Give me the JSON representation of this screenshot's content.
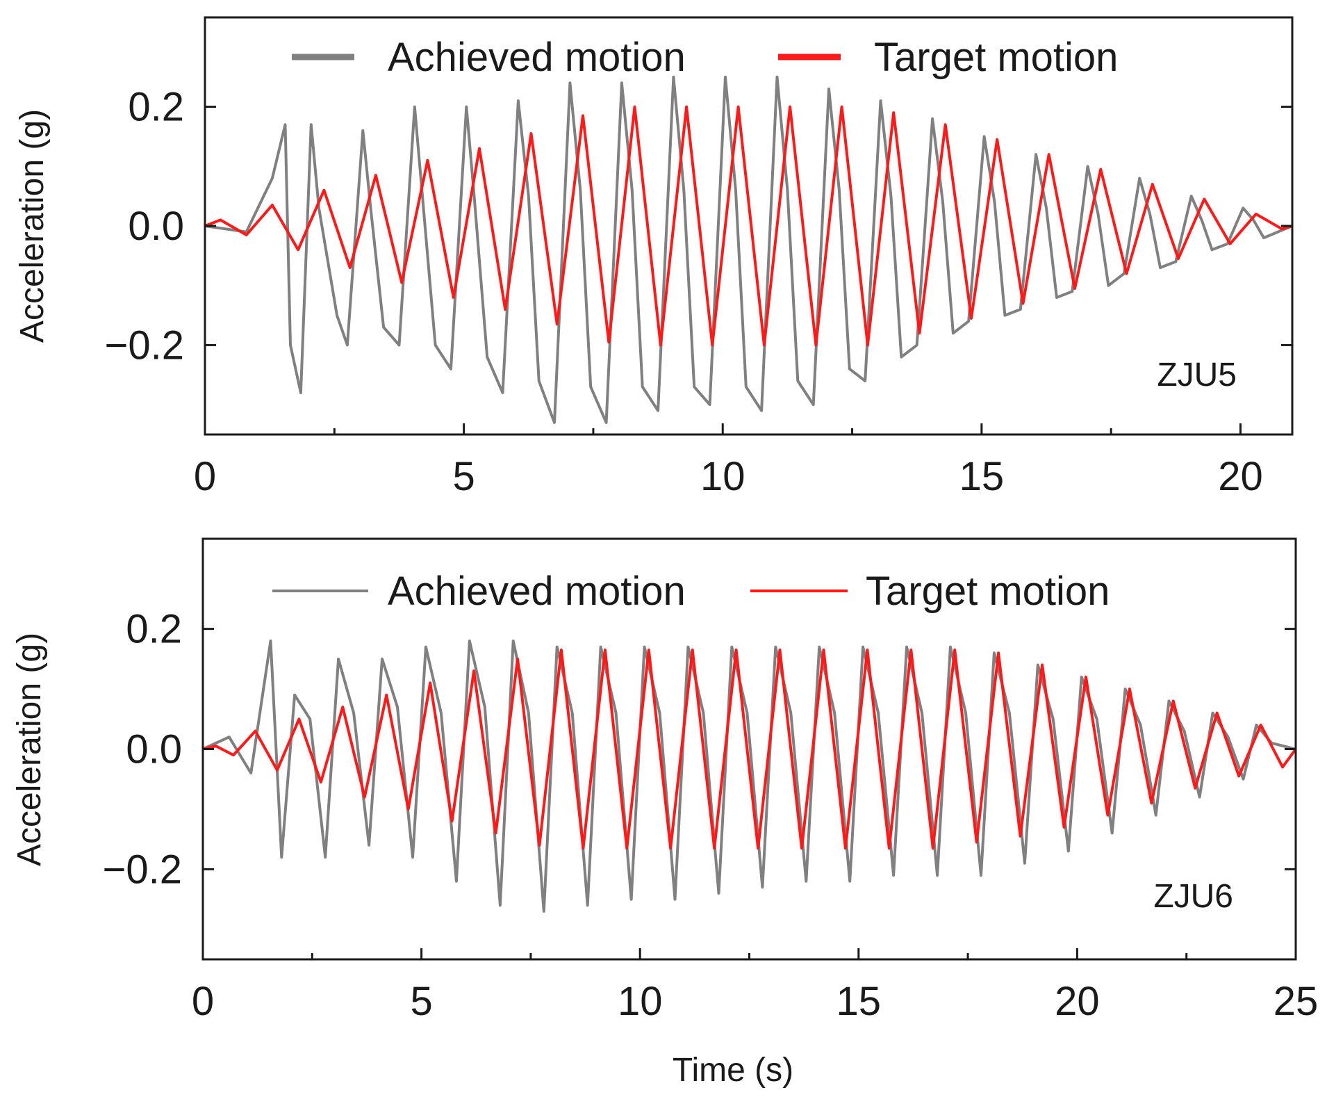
{
  "chart_data": [
    {
      "type": "line",
      "annotation": "ZJU5",
      "ylabel": "Acceleration (g)",
      "xlabel": "",
      "xlim": [
        0,
        21
      ],
      "ylim": [
        -0.35,
        0.35
      ],
      "xticks": [
        0,
        5,
        10,
        15,
        20
      ],
      "xticklabels": [
        "0",
        "5",
        "10",
        "15",
        "20"
      ],
      "yticks": [
        -0.2,
        0.0,
        0.2
      ],
      "yticklabels": [
        "−0.2",
        "0.0",
        "0.2"
      ],
      "legend_position": "top",
      "legend_line_style": "thick",
      "series": [
        {
          "name": "Achieved motion",
          "color": "#808080",
          "description": "noisy measured table acceleration; sampled peak envelope",
          "x": [
            0.0,
            0.8,
            1.3,
            1.55,
            1.65,
            1.85,
            2.05,
            2.2,
            2.55,
            2.75,
            3.05,
            3.2,
            3.45,
            3.75,
            4.05,
            4.2,
            4.45,
            4.75,
            5.05,
            5.2,
            5.45,
            5.75,
            6.05,
            6.25,
            6.45,
            6.75,
            7.05,
            7.25,
            7.45,
            7.75,
            8.05,
            8.25,
            8.45,
            8.75,
            9.05,
            9.25,
            9.45,
            9.75,
            10.05,
            10.25,
            10.45,
            10.75,
            11.05,
            11.25,
            11.45,
            11.75,
            12.05,
            12.25,
            12.45,
            12.75,
            13.05,
            13.25,
            13.45,
            13.75,
            14.05,
            14.25,
            14.45,
            14.75,
            15.05,
            15.25,
            15.45,
            15.75,
            16.05,
            16.25,
            16.45,
            16.75,
            17.05,
            17.25,
            17.45,
            17.75,
            18.05,
            18.25,
            18.45,
            18.75,
            19.05,
            19.25,
            19.45,
            19.75,
            20.05,
            20.25,
            20.45,
            21.0
          ],
          "y": [
            0.0,
            -0.01,
            0.08,
            0.17,
            -0.2,
            -0.28,
            0.17,
            0.03,
            -0.15,
            -0.2,
            0.16,
            0.03,
            -0.17,
            -0.2,
            0.2,
            0.05,
            -0.2,
            -0.24,
            0.2,
            0.05,
            -0.22,
            -0.28,
            0.21,
            0.05,
            -0.26,
            -0.33,
            0.24,
            0.06,
            -0.27,
            -0.33,
            0.24,
            0.06,
            -0.27,
            -0.31,
            0.25,
            0.06,
            -0.27,
            -0.3,
            0.25,
            0.06,
            -0.27,
            -0.31,
            0.25,
            0.06,
            -0.26,
            -0.3,
            0.23,
            0.06,
            -0.24,
            -0.26,
            0.21,
            0.05,
            -0.22,
            -0.2,
            0.18,
            0.04,
            -0.18,
            -0.16,
            0.15,
            0.04,
            -0.15,
            -0.14,
            0.12,
            0.03,
            -0.12,
            -0.11,
            0.1,
            0.02,
            -0.1,
            -0.08,
            0.08,
            0.02,
            -0.07,
            -0.06,
            0.05,
            0.01,
            -0.04,
            -0.03,
            0.03,
            0.01,
            -0.02,
            0.0
          ]
        },
        {
          "name": "Target motion",
          "color": "#ff1a1a",
          "x": [
            0.0,
            0.3,
            0.8,
            1.3,
            1.8,
            2.3,
            2.8,
            3.3,
            3.8,
            4.3,
            4.8,
            5.3,
            5.8,
            6.3,
            6.8,
            7.3,
            7.8,
            8.3,
            8.8,
            9.3,
            9.8,
            10.3,
            10.8,
            11.3,
            11.8,
            12.3,
            12.8,
            13.3,
            13.8,
            14.3,
            14.8,
            15.3,
            15.8,
            16.3,
            16.8,
            17.3,
            17.8,
            18.3,
            18.8,
            19.3,
            19.8,
            20.3,
            20.8,
            21.0
          ],
          "y": [
            0.0,
            0.01,
            -0.015,
            0.035,
            -0.04,
            0.06,
            -0.07,
            0.085,
            -0.095,
            0.11,
            -0.12,
            0.13,
            -0.14,
            0.155,
            -0.165,
            0.185,
            -0.195,
            0.2,
            -0.2,
            0.2,
            -0.2,
            0.2,
            -0.2,
            0.2,
            -0.2,
            0.2,
            -0.2,
            0.19,
            -0.18,
            0.17,
            -0.155,
            0.145,
            -0.13,
            0.12,
            -0.105,
            0.095,
            -0.08,
            0.07,
            -0.055,
            0.045,
            -0.03,
            0.02,
            -0.005,
            0.0
          ]
        }
      ]
    },
    {
      "type": "line",
      "annotation": "ZJU6",
      "ylabel": "Acceleration (g)",
      "xlabel": "Time (s)",
      "xlim": [
        0,
        25
      ],
      "ylim": [
        -0.35,
        0.35
      ],
      "xticks": [
        0,
        5,
        10,
        15,
        20,
        25
      ],
      "xticklabels": [
        "0",
        "5",
        "10",
        "15",
        "20",
        "25"
      ],
      "yticks": [
        -0.2,
        0.0,
        0.2
      ],
      "yticklabels": [
        "−0.2",
        "0.0",
        "0.2"
      ],
      "legend_position": "top",
      "legend_line_style": "thin",
      "series": [
        {
          "name": "Achieved motion",
          "color": "#808080",
          "description": "noisy measured table acceleration; sampled peak envelope",
          "x": [
            0.0,
            0.6,
            1.1,
            1.55,
            1.8,
            2.1,
            2.45,
            2.8,
            3.1,
            3.45,
            3.8,
            4.1,
            4.45,
            4.8,
            5.1,
            5.45,
            5.8,
            6.1,
            6.45,
            6.8,
            7.1,
            7.45,
            7.8,
            8.1,
            8.45,
            8.8,
            9.1,
            9.45,
            9.8,
            10.1,
            10.45,
            10.8,
            11.1,
            11.45,
            11.8,
            12.1,
            12.45,
            12.8,
            13.1,
            13.45,
            13.8,
            14.1,
            14.45,
            14.8,
            15.1,
            15.45,
            15.8,
            16.1,
            16.45,
            16.8,
            17.1,
            17.45,
            17.8,
            18.1,
            18.45,
            18.8,
            19.1,
            19.45,
            19.8,
            20.1,
            20.45,
            20.8,
            21.1,
            21.45,
            21.8,
            22.1,
            22.45,
            22.8,
            23.1,
            23.45,
            23.8,
            24.1,
            24.45,
            25.0
          ],
          "y": [
            0.0,
            0.02,
            -0.04,
            0.18,
            -0.18,
            0.09,
            0.05,
            -0.18,
            0.15,
            0.06,
            -0.16,
            0.15,
            0.07,
            -0.18,
            0.17,
            0.06,
            -0.22,
            0.18,
            0.07,
            -0.26,
            0.18,
            0.06,
            -0.27,
            0.17,
            0.06,
            -0.26,
            0.17,
            0.06,
            -0.25,
            0.17,
            0.06,
            -0.25,
            0.17,
            0.06,
            -0.24,
            0.17,
            0.06,
            -0.23,
            0.17,
            0.06,
            -0.22,
            0.17,
            0.06,
            -0.22,
            0.17,
            0.06,
            -0.21,
            0.17,
            0.06,
            -0.21,
            0.17,
            0.06,
            -0.21,
            0.16,
            0.06,
            -0.19,
            0.14,
            0.05,
            -0.17,
            0.12,
            0.05,
            -0.14,
            0.1,
            0.04,
            -0.11,
            0.08,
            0.03,
            -0.08,
            0.06,
            0.02,
            -0.05,
            0.04,
            0.01,
            0.0
          ]
        },
        {
          "name": "Target motion",
          "color": "#ff1a1a",
          "x": [
            0.0,
            0.3,
            0.7,
            1.2,
            1.7,
            2.2,
            2.7,
            3.2,
            3.7,
            4.2,
            4.7,
            5.2,
            5.7,
            6.2,
            6.7,
            7.2,
            7.7,
            8.2,
            8.7,
            9.2,
            9.7,
            10.2,
            10.7,
            11.2,
            11.7,
            12.2,
            12.7,
            13.2,
            13.7,
            14.2,
            14.7,
            15.2,
            15.7,
            16.2,
            16.7,
            17.2,
            17.7,
            18.2,
            18.7,
            19.2,
            19.7,
            20.2,
            20.7,
            21.2,
            21.7,
            22.2,
            22.7,
            23.2,
            23.7,
            24.2,
            24.7,
            25.0
          ],
          "y": [
            0.0,
            0.005,
            -0.01,
            0.03,
            -0.035,
            0.05,
            -0.055,
            0.07,
            -0.08,
            0.09,
            -0.1,
            0.11,
            -0.12,
            0.13,
            -0.14,
            0.15,
            -0.16,
            0.165,
            -0.165,
            0.165,
            -0.165,
            0.165,
            -0.165,
            0.165,
            -0.165,
            0.165,
            -0.165,
            0.165,
            -0.165,
            0.165,
            -0.165,
            0.165,
            -0.165,
            0.165,
            -0.165,
            0.165,
            -0.155,
            0.16,
            -0.145,
            0.14,
            -0.13,
            0.12,
            -0.11,
            0.1,
            -0.09,
            0.08,
            -0.065,
            0.06,
            -0.045,
            0.04,
            -0.03,
            0.0
          ]
        }
      ]
    }
  ]
}
